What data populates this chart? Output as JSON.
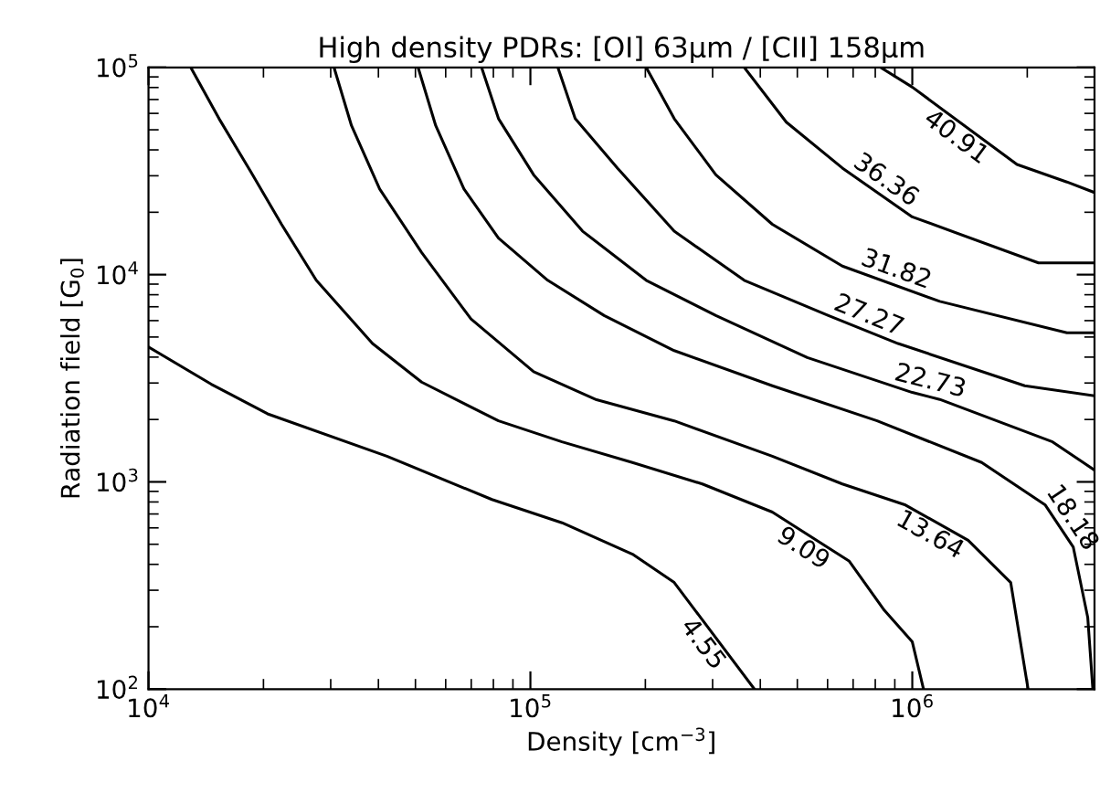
{
  "chart_data": {
    "type": "line",
    "title": "High density PDRs: [OI] 63μm / [CII] 158μm",
    "xlabel": "Density [cm$^{−3}$]",
    "ylabel": "Radiation field [G$_{0}$]",
    "log": "xy",
    "grid": false,
    "marker": "none",
    "line_style": "solid",
    "xlim": [
      10000,
      3000000
    ],
    "ylim": [
      100,
      100000
    ],
    "xticks": [
      {
        "value": 10000,
        "label": "10$^{4}$"
      },
      {
        "value": 100000,
        "label": "10$^{5}$"
      },
      {
        "value": 1000000,
        "label": "10$^{6}$"
      }
    ],
    "yticks": [
      {
        "value": 100,
        "label": "10$^{2}$"
      },
      {
        "value": 1000,
        "label": "10$^{3}$"
      },
      {
        "value": 10000,
        "label": "10$^{4}$"
      },
      {
        "value": 100000,
        "label": "10$^{5}$"
      }
    ],
    "annotations": [
      {
        "text": "4.55",
        "x": 303000,
        "y": 181
      },
      {
        "text": "9.09",
        "x": 542000,
        "y": 544
      },
      {
        "text": "13.64",
        "x": 1160000,
        "y": 636
      },
      {
        "text": "18.18",
        "x": 2430000,
        "y": 612
      },
      {
        "text": "22.73",
        "x": 1090000,
        "y": 2600
      },
      {
        "text": "27.27",
        "x": 744000,
        "y": 5430
      },
      {
        "text": "31.82",
        "x": 880000,
        "y": 9040
      },
      {
        "text": "36.36",
        "x": 810000,
        "y": 24900
      },
      {
        "text": "40.91",
        "x": 1370000,
        "y": 52200
      }
    ],
    "series": [
      {
        "color": "#000000",
        "x": [
          10000,
          14600,
          20500,
          42100,
          79300,
          121000,
          185000,
          238000,
          386000
        ],
        "values": [
          4480,
          2960,
          2130,
          1330,
          822,
          635,
          448,
          327,
          100
        ]
      },
      {
        "color": "#000000",
        "x": [
          12900,
          15300,
          18500,
          22300,
          27500,
          38600,
          51900,
          82500,
          121000,
          185000,
          282000,
          430000,
          684000,
          845000,
          1000000,
          1070000
        ],
        "values": [
          100000,
          56600,
          31500,
          17500,
          9390,
          4650,
          3030,
          1970,
          1560,
          1240,
          977,
          715,
          414,
          240,
          169,
          100
        ]
      },
      {
        "color": "#000000",
        "x": [
          30600,
          34000,
          40300,
          51900,
          69900,
          102000,
          149000,
          238000,
          430000,
          656000,
          960000,
          1400000,
          1810000,
          2010000
        ],
        "values": [
          100000,
          52400,
          25900,
          12800,
          6110,
          3400,
          2490,
          1970,
          1330,
          977,
          773,
          523,
          327,
          100
        ]
      },
      {
        "color": "#000000",
        "x": [
          50800,
          56500,
          67000,
          82500,
          111000,
          156000,
          238000,
          430000,
          809000,
          1520000,
          2230000,
          2640000,
          2880000,
          2970000
        ],
        "values": [
          100000,
          52400,
          25900,
          15000,
          9390,
          6350,
          4300,
          2910,
          1970,
          1240,
          773,
          484,
          222,
          100
        ]
      },
      {
        "color": "#000000",
        "x": [
          74500,
          82500,
          102000,
          137000,
          201000,
          306000,
          531000,
          1000000,
          1180000,
          2330000,
          3000000
        ],
        "values": [
          100000,
          56600,
          30300,
          16200,
          9390,
          6350,
          3980,
          2700,
          2500,
          1560,
          1140
        ]
      },
      {
        "color": "#000000",
        "x": [
          118000,
          131000,
          169000,
          238000,
          363000,
          603000,
          918000,
          1970000,
          3000000
        ],
        "values": [
          100000,
          56600,
          32700,
          16200,
          9390,
          6350,
          4650,
          2910,
          2600
        ]
      },
      {
        "color": "#000000",
        "x": [
          201000,
          238000,
          306000,
          430000,
          656000,
          1180000,
          2540000,
          3000000
        ],
        "values": [
          100000,
          56600,
          30300,
          17500,
          11000,
          7430,
          5240,
          5240
        ]
      },
      {
        "color": "#000000",
        "x": [
          363000,
          468000,
          656000,
          1000000,
          2140000,
          3000000
        ],
        "values": [
          100000,
          54400,
          32700,
          19000,
          11400,
          11400
        ]
      },
      {
        "color": "#000000",
        "x": [
          826000,
          1000000,
          1880000,
          2540000,
          3000000
        ],
        "values": [
          100000,
          80300,
          34000,
          28000,
          24900
        ]
      }
    ]
  }
}
